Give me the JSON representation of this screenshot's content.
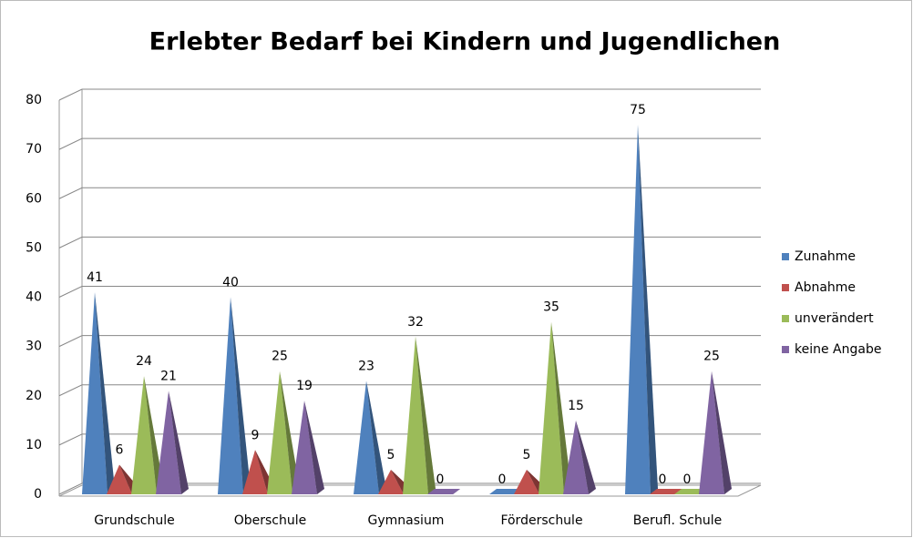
{
  "chart_data": {
    "type": "pyramid",
    "title": "Erlebter Bedarf bei Kindern und Jugendlichen",
    "categories": [
      "Grundschule",
      "Oberschule",
      "Gymnasium",
      "Förderschule",
      "Berufl. Schule"
    ],
    "series": [
      {
        "name": "Zunahme",
        "color": "#4f81bd",
        "values": [
          41,
          40,
          23,
          0,
          75
        ]
      },
      {
        "name": "Abnahme",
        "color": "#c0504d",
        "values": [
          6,
          9,
          5,
          5,
          0
        ]
      },
      {
        "name": "unverändert",
        "color": "#9bbb59",
        "values": [
          24,
          25,
          32,
          35,
          0
        ]
      },
      {
        "name": "keine Angabe",
        "color": "#8064a2",
        "values": [
          21,
          19,
          0,
          15,
          25
        ]
      }
    ],
    "ylim": [
      0,
      80
    ],
    "yticks": [
      0,
      10,
      20,
      30,
      40,
      50,
      60,
      70,
      80
    ],
    "grid": true,
    "legend": "right"
  }
}
